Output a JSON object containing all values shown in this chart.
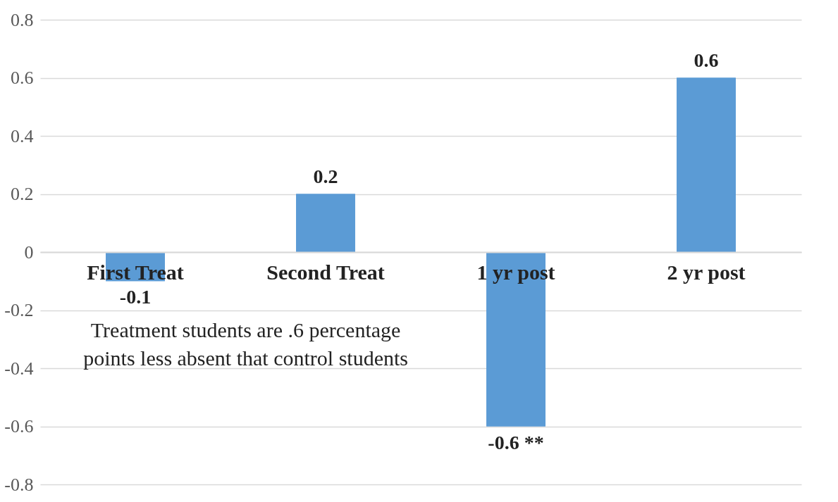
{
  "chart_data": {
    "type": "bar",
    "categories": [
      "First Treat",
      "Second Treat",
      "1 yr post",
      "2 yr post"
    ],
    "values": [
      -0.1,
      0.2,
      -0.6,
      0.6
    ],
    "color": "#5b9bd5",
    "value_labels": [
      "-0.1",
      "0.2",
      "-0.6 **",
      "0.6"
    ],
    "ylim": [
      -0.8,
      0.8
    ],
    "yticks": [
      -0.8,
      -0.6,
      -0.4,
      -0.2,
      0,
      0.2,
      0.4,
      0.6,
      0.8
    ],
    "grid": "y",
    "annotations": [
      "Treatment students are .6 percentage points less absent that control students"
    ]
  }
}
